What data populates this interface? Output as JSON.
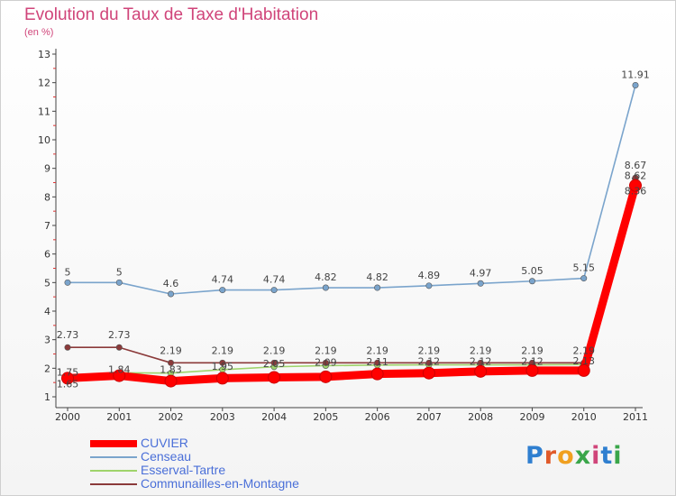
{
  "title": "Evolution du Taux de Taxe d'Habitation",
  "subtitle": "(en %)",
  "logo": {
    "text": "Proxiti",
    "colors": [
      "#2f7fd0",
      "#e05a2a",
      "#f0a020",
      "#3aa64a",
      "#d0457a",
      "#2f7fd0",
      "#3aa64a"
    ]
  },
  "chart_data": {
    "type": "line",
    "x": [
      "2000",
      "2001",
      "2002",
      "2003",
      "2004",
      "2005",
      "2006",
      "2007",
      "2008",
      "2009",
      "2010",
      "2011"
    ],
    "yticks": [
      "1",
      "2",
      "3",
      "4",
      "5",
      "6",
      "7",
      "8",
      "9",
      "10",
      "11",
      "12",
      "13"
    ],
    "ylim": [
      1,
      13
    ],
    "grid": false,
    "legend": "bottom-left",
    "series": [
      {
        "name": "CUVIER",
        "color": "#ff0000",
        "values": [
          1.65,
          1.74,
          1.55,
          1.65,
          1.68,
          1.7,
          1.8,
          1.83,
          1.89,
          1.92,
          1.92,
          8.4
        ],
        "labels": [
          "1.65",
          "",
          "",
          "",
          "",
          "",
          "",
          "",
          "",
          "",
          "",
          "8.36"
        ]
      },
      {
        "name": "Censeau",
        "color": "#7aa4cc",
        "values": [
          5,
          5,
          4.6,
          4.74,
          4.74,
          4.82,
          4.82,
          4.89,
          4.97,
          5.05,
          5.15,
          11.91
        ],
        "labels": [
          "5",
          "5",
          "4.6",
          "4.74",
          "4.74",
          "4.82",
          "4.82",
          "4.89",
          "4.97",
          "5.05",
          "5.15",
          "11.91"
        ]
      },
      {
        "name": "Esserval-Tartre",
        "color": "#9fd46b",
        "values": [
          1.75,
          1.84,
          1.83,
          1.95,
          2.05,
          2.09,
          2.11,
          2.12,
          2.12,
          2.12,
          2.13,
          8.62
        ],
        "labels": [
          "1.75",
          "1.84",
          "1.83",
          "1.95",
          "2.05",
          "2.09",
          "2.11",
          "2.12",
          "2.12",
          "2.12",
          "2.13",
          "8.62"
        ]
      },
      {
        "name": "Communailles-en-Montagne",
        "color": "#8b3a3a",
        "values": [
          2.73,
          2.73,
          2.19,
          2.19,
          2.19,
          2.19,
          2.19,
          2.19,
          2.19,
          2.19,
          2.19,
          8.67
        ],
        "labels": [
          "2.73",
          "2.73",
          "2.19",
          "2.19",
          "2.19",
          "2.19",
          "2.19",
          "2.19",
          "2.19",
          "2.19",
          "2.19",
          "8.67"
        ]
      }
    ]
  }
}
